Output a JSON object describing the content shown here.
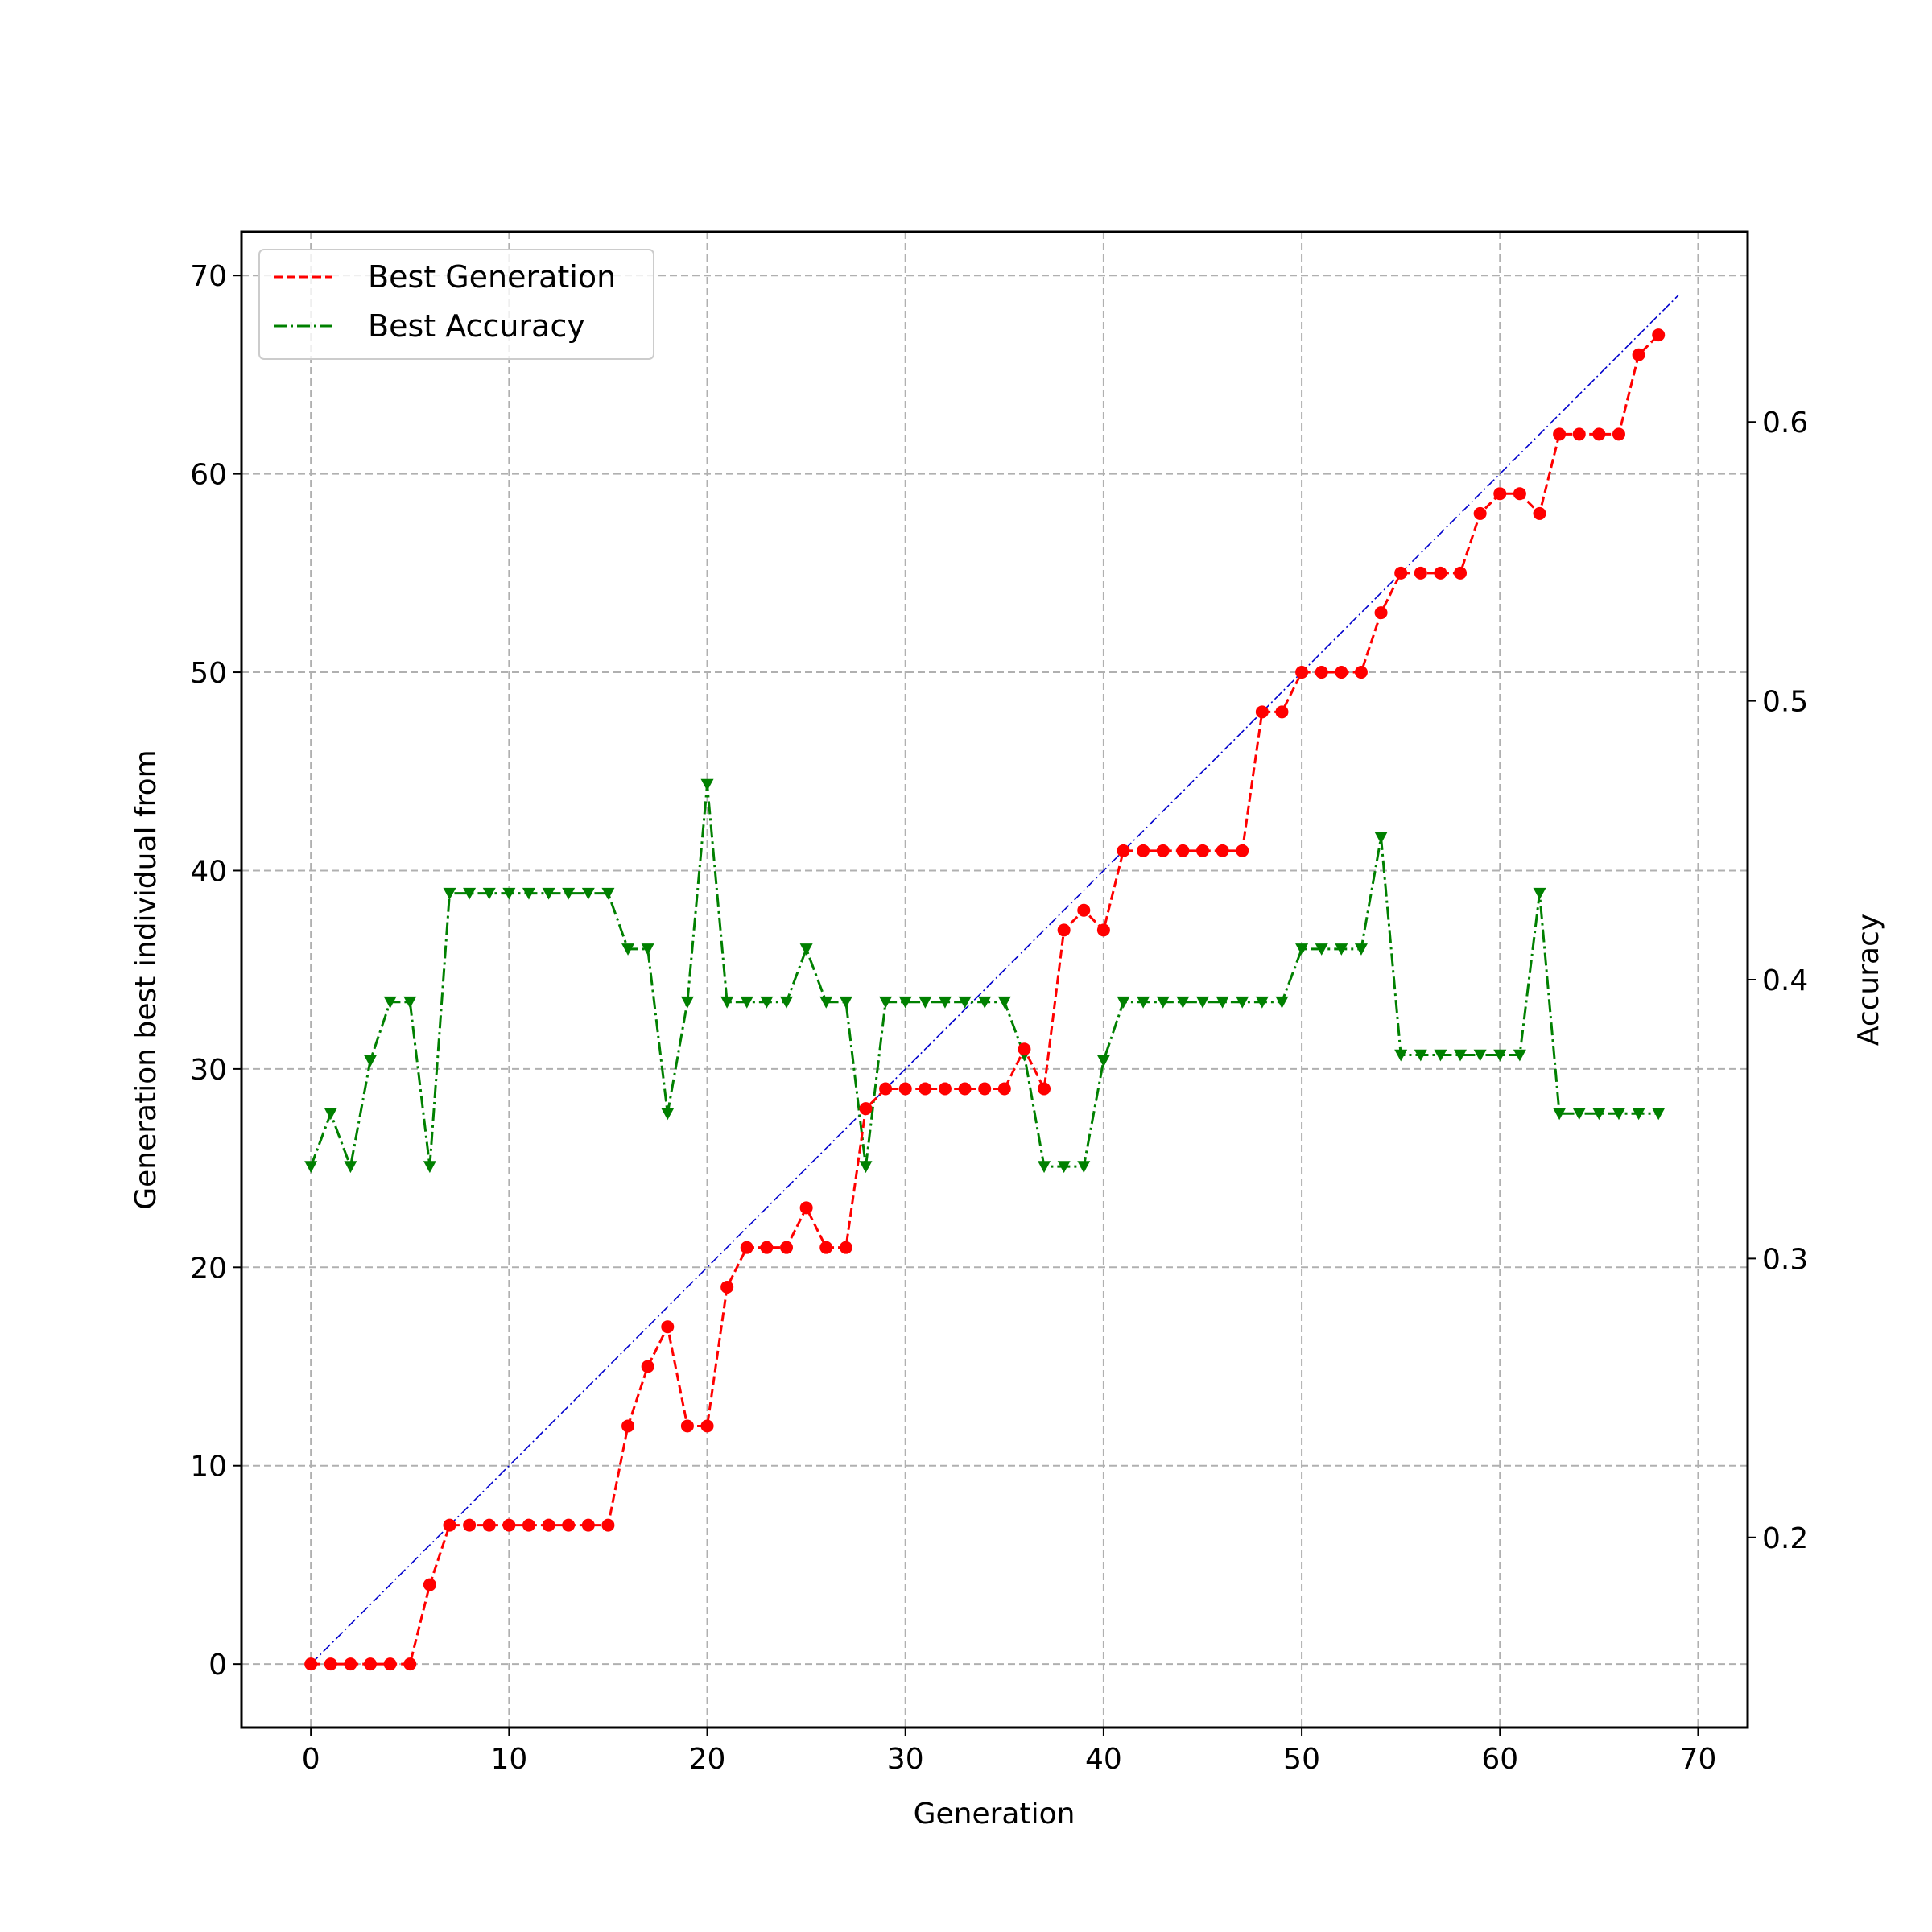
{
  "chart_data": {
    "type": "line",
    "title": "",
    "xlabel": "Generation",
    "ylabel": "Generation best individual from",
    "y2label": "Accuracy",
    "xlim": [
      -3.5,
      72.5
    ],
    "ylim": [
      -3.2,
      72.2
    ],
    "y2lim": [
      0.1318,
      0.6682
    ],
    "x_ticks": [
      0,
      10,
      20,
      30,
      40,
      50,
      60,
      70
    ],
    "y_ticks": [
      0,
      10,
      20,
      30,
      40,
      50,
      60,
      70
    ],
    "y2_ticks": [
      0.2,
      0.3,
      0.4,
      0.5,
      0.6
    ],
    "grid": true,
    "legend_position": "upper-left",
    "x": [
      0,
      1,
      2,
      3,
      4,
      5,
      6,
      7,
      8,
      9,
      10,
      11,
      12,
      13,
      14,
      15,
      16,
      17,
      18,
      19,
      20,
      21,
      22,
      23,
      24,
      25,
      26,
      27,
      28,
      29,
      30,
      31,
      32,
      33,
      34,
      35,
      36,
      37,
      38,
      39,
      40,
      41,
      42,
      43,
      44,
      45,
      46,
      47,
      48,
      49,
      50,
      51,
      52,
      53,
      54,
      55,
      56,
      57,
      58,
      59,
      60,
      61,
      62,
      63,
      64,
      65,
      66,
      67,
      68
    ],
    "series": [
      {
        "name": "Best Generation",
        "axis": "left",
        "color": "#ff0000",
        "linestyle": "dashed",
        "marker": "circle",
        "values": [
          0,
          0,
          0,
          0,
          0,
          0,
          4,
          7,
          7,
          7,
          7,
          7,
          7,
          7,
          7,
          7,
          12,
          15,
          17,
          12,
          12,
          19,
          21,
          21,
          21,
          23,
          21,
          21,
          28,
          29,
          29,
          29,
          29,
          29,
          29,
          29,
          31,
          29,
          37,
          38,
          37,
          41,
          41,
          41,
          41,
          41,
          41,
          41,
          48,
          48,
          50,
          50,
          50,
          50,
          53,
          55,
          55,
          55,
          55,
          58,
          59,
          59,
          58,
          62,
          62,
          62,
          62,
          66,
          67
        ]
      },
      {
        "name": "Best Accuracy",
        "axis": "right",
        "color": "#008000",
        "linestyle": "dashdot",
        "marker": "triangle-down",
        "values": [
          0.333,
          0.352,
          0.333,
          0.371,
          0.392,
          0.392,
          0.333,
          0.431,
          0.431,
          0.431,
          0.431,
          0.431,
          0.431,
          0.431,
          0.431,
          0.431,
          0.411,
          0.411,
          0.352,
          0.392,
          0.47,
          0.392,
          0.392,
          0.392,
          0.392,
          0.411,
          0.392,
          0.392,
          0.333,
          0.392,
          0.392,
          0.392,
          0.392,
          0.392,
          0.392,
          0.392,
          0.373,
          0.333,
          0.333,
          0.333,
          0.371,
          0.392,
          0.392,
          0.392,
          0.392,
          0.392,
          0.392,
          0.392,
          0.392,
          0.392,
          0.411,
          0.411,
          0.411,
          0.411,
          0.451,
          0.373,
          0.373,
          0.373,
          0.373,
          0.373,
          0.373,
          0.373,
          0.431,
          0.352,
          0.352,
          0.352,
          0.352,
          0.352,
          0.352
        ]
      },
      {
        "axis": "left",
        "color": "#0000cc",
        "linestyle": "dashdot-thin",
        "marker": "none",
        "values": [
          0,
          69
        ],
        "x": [
          0,
          69
        ]
      }
    ]
  }
}
